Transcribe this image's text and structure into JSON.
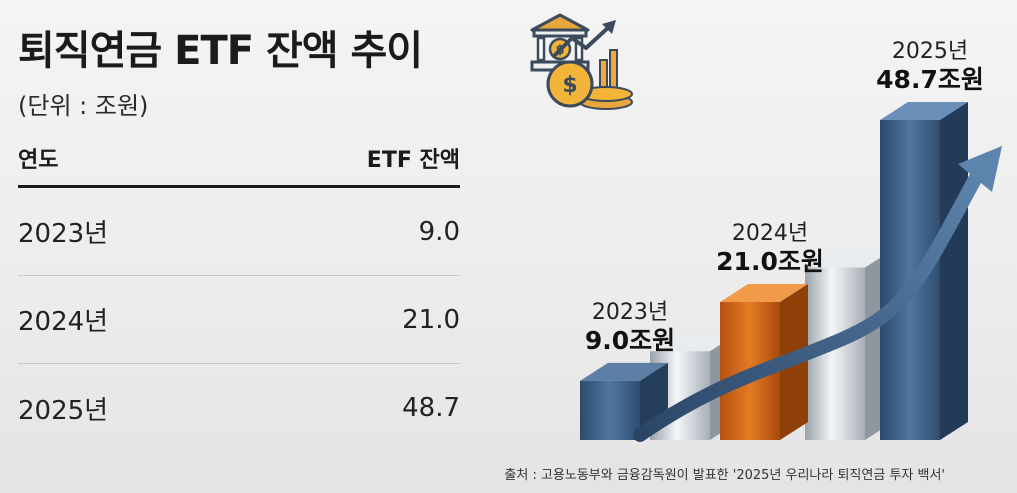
{
  "title": "퇴직연금 ETF 잔액 추이",
  "unit": "(단위 : 조원)",
  "table": {
    "headers": [
      "연도",
      "ETF 잔액"
    ],
    "rows": [
      {
        "year": "2023년",
        "value": "9.0"
      },
      {
        "year": "2024년",
        "value": "21.0"
      },
      {
        "year": "2025년",
        "value": "48.7"
      }
    ]
  },
  "chart_data": {
    "type": "bar",
    "categories": [
      "2023년",
      "2024년",
      "2025년"
    ],
    "values": [
      9.0,
      21.0,
      48.7
    ],
    "value_labels": [
      "9.0조원",
      "21.0조원",
      "48.7조원"
    ],
    "title": "",
    "xlabel": "",
    "ylabel": "",
    "colors": {
      "2023년": "#3c5f86",
      "2024년": "#d46a1c",
      "2025년": "#3c5f86",
      "arrow": "#4a6f9a"
    }
  },
  "source": "출처 : 고용노동부와 금융감독원이 발표한 '2025년 우리나라 퇴직연금 투자 백서'",
  "icons": [
    "bank-icon",
    "growth-coins-icon",
    "trend-arrow-icon"
  ]
}
